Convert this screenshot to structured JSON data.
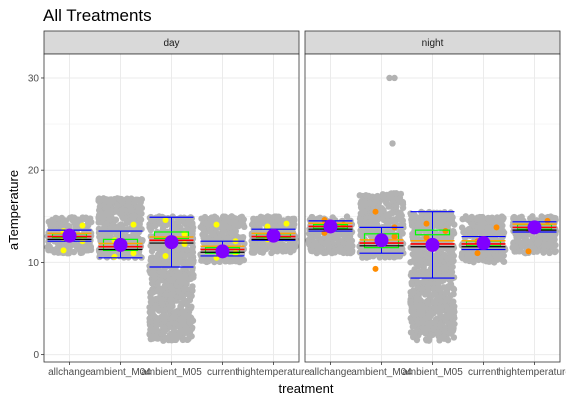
{
  "chart_data": {
    "type": "scatter",
    "title": "All Treatments",
    "xlabel": "treatment",
    "ylabel": "aTemperature",
    "ylim": [
      0,
      32
    ],
    "yticks": [
      0,
      10,
      20,
      30
    ],
    "categories": [
      "allchange",
      "ambient_M04",
      "ambient_M05",
      "current",
      "hightemperature"
    ],
    "category_labels": [
      "allchange",
      "ambient_M04",
      "ambient_M05",
      "current",
      "hightemperature"
    ],
    "grid": true,
    "colors": {
      "jitter": "#b3b3b3",
      "mean_point": "#8000ff",
      "errorbar": "#0000ff",
      "ci_band": "#00ff00",
      "median": "#ff0000",
      "mean_line": "#000000",
      "quantile": "#ffa500",
      "day_points": "#ffff00",
      "night_points": "#ff8c00",
      "strip_bg": "#d9d9d9"
    },
    "panels": [
      {
        "facet": "day",
        "groups": [
          {
            "category": "allchange",
            "jitter_range": [
              11,
              15
            ],
            "mean": 12.9,
            "sd_low": 12.3,
            "sd_high": 13.5,
            "ci_low": 12.7,
            "ci_high": 13.1,
            "median": 12.8,
            "points": [
              11.3,
              12.3,
              13.4,
              14.0,
              12.6
            ]
          },
          {
            "category": "ambient_M04",
            "jitter_range": [
              10.5,
              17
            ],
            "mean": 11.9,
            "sd_low": 10.5,
            "sd_high": 13.4,
            "ci_low": 11.3,
            "ci_high": 12.5,
            "median": 11.7,
            "points": [
              10.6,
              14.1,
              12.4,
              11.0
            ]
          },
          {
            "category": "ambient_M05",
            "jitter_range": [
              1.5,
              15
            ],
            "mean": 12.2,
            "sd_low": 9.5,
            "sd_high": 14.9,
            "ci_low": 12.6,
            "ci_high": 13.3,
            "median": 12.4,
            "points": [
              10.7,
              13.1,
              14.6,
              12.0
            ]
          },
          {
            "category": "current",
            "jitter_range": [
              10,
              15
            ],
            "mean": 11.2,
            "sd_low": 10.7,
            "sd_high": 12.3,
            "ci_low": 11.0,
            "ci_high": 11.6,
            "median": 11.4,
            "points": [
              10.5,
              12.3,
              14.1,
              11.0
            ]
          },
          {
            "category": "hightemperature",
            "jitter_range": [
              11,
              15
            ],
            "mean": 12.9,
            "sd_low": 12.4,
            "sd_high": 13.6,
            "ci_low": 12.7,
            "ci_high": 13.1,
            "median": 12.8,
            "points": [
              13.9,
              14.2,
              12.5
            ]
          }
        ]
      },
      {
        "facet": "night",
        "groups": [
          {
            "category": "allchange",
            "jitter_range": [
              11,
              15
            ],
            "mean": 13.9,
            "sd_low": 13.4,
            "sd_high": 14.5,
            "ci_low": 13.7,
            "ci_high": 14.1,
            "median": 13.9,
            "points": [
              13.2,
              14.1,
              14.6
            ]
          },
          {
            "category": "ambient_M04",
            "jitter_range": [
              10.5,
              17.5
            ],
            "mean": 12.4,
            "sd_low": 11.0,
            "sd_high": 13.8,
            "ci_low": 11.6,
            "ci_high": 13.1,
            "median": 12.1,
            "points": [
              9.3,
              13.8,
              15.5,
              12.8
            ]
          },
          {
            "category": "ambient_M05",
            "jitter_range": [
              1.5,
              15.5
            ],
            "mean": 11.9,
            "sd_low": 8.3,
            "sd_high": 15.5,
            "ci_low": 13.0,
            "ci_high": 13.5,
            "median": 12.0,
            "points": [
              12.7,
              13.4,
              14.2
            ]
          },
          {
            "category": "current",
            "jitter_range": [
              10,
              15
            ],
            "mean": 12.1,
            "sd_low": 11.4,
            "sd_high": 12.8,
            "ci_low": 11.8,
            "ci_high": 12.3,
            "median": 12.0,
            "points": [
              11.0,
              13.8,
              12.3
            ]
          },
          {
            "category": "hightemperature",
            "jitter_range": [
              11,
              15
            ],
            "mean": 13.8,
            "sd_low": 13.3,
            "sd_high": 14.4,
            "ci_low": 13.6,
            "ci_high": 14.1,
            "median": 13.8,
            "points": [
              11.2,
              14.5,
              13.6
            ]
          }
        ],
        "outliers": [
          {
            "category": "ambient_M04",
            "values": [
              30.0,
              30.0,
              22.9
            ]
          }
        ]
      }
    ]
  }
}
